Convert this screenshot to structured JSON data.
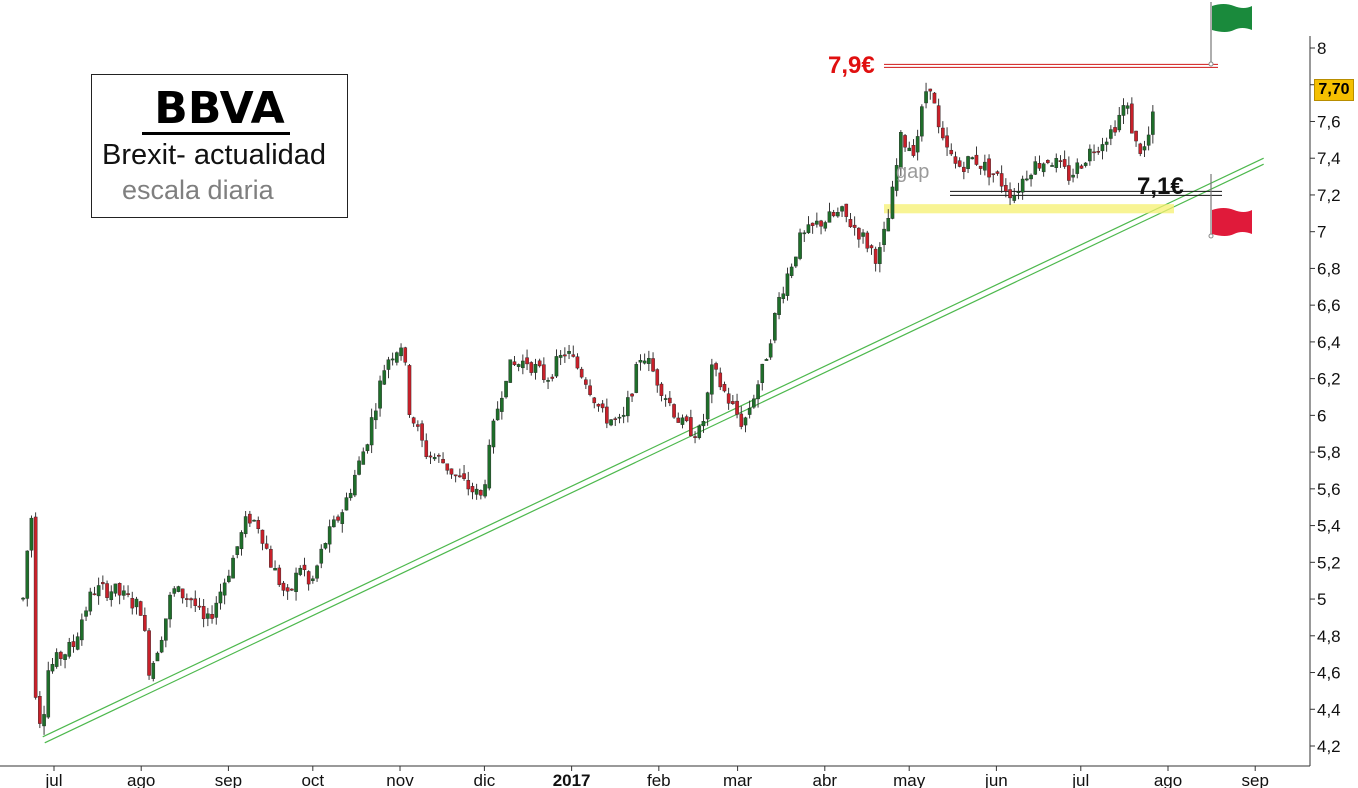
{
  "annotations": {
    "stock_title": "BBVA",
    "subtitle": "Brexit- actualidad",
    "scale_note": "escala diaria",
    "resistance_label": "7,9€",
    "support_label": "7,1€",
    "gap_label": "gap",
    "last_price": "7,70"
  },
  "colors": {
    "up_candle": "#1e6e2a",
    "down_candle": "#c8202a",
    "trendline": "#4db84d",
    "resistance": "#d01818",
    "support": "#111111",
    "gap_zone": "#f5f070",
    "price_badge": "#f5c000",
    "flag_green": "#1a8a3c",
    "flag_red": "#e01a3a"
  },
  "icons": {
    "top_flag": "green-flag-icon",
    "bottom_flag": "red-flag-icon"
  },
  "chart_data": {
    "type": "candlestick",
    "ylim": [
      4.15,
      8.05
    ],
    "y_ticks": [
      "4,2",
      "4,4",
      "4,6",
      "4,8",
      "5",
      "5,2",
      "5,4",
      "5,6",
      "5,8",
      "6",
      "6,2",
      "6,4",
      "6,6",
      "6,8",
      "7",
      "7,2",
      "7,4",
      "7,6",
      "7,8",
      "8"
    ],
    "x_ticks": [
      "jul",
      "ago",
      "sep",
      "oct",
      "nov",
      "dic",
      "2017",
      "feb",
      "mar",
      "abr",
      "may",
      "jun",
      "jul",
      "ago",
      "sep"
    ],
    "grid": false,
    "resistance_level": 7.9,
    "support_level": 7.1,
    "gap_range": [
      7.1,
      7.15
    ],
    "last_price": 7.7,
    "trendline": {
      "start": [
        "2016-06-27",
        4.25
      ],
      "end": [
        "2017-09-04",
        7.4
      ]
    },
    "price_path": [
      [
        "2016-06-20",
        5.0
      ],
      [
        "2016-06-22",
        5.35
      ],
      [
        "2016-06-23",
        5.45
      ],
      [
        "2016-06-24",
        4.55
      ],
      [
        "2016-06-27",
        4.25
      ],
      [
        "2016-06-28",
        4.6
      ],
      [
        "2016-07-04",
        4.7
      ],
      [
        "2016-07-08",
        4.75
      ],
      [
        "2016-07-11",
        4.9
      ],
      [
        "2016-07-15",
        5.05
      ],
      [
        "2016-07-22",
        5.05
      ],
      [
        "2016-08-01",
        4.95
      ],
      [
        "2016-08-04",
        4.6
      ],
      [
        "2016-08-09",
        4.85
      ],
      [
        "2016-08-12",
        5.05
      ],
      [
        "2016-08-19",
        5.0
      ],
      [
        "2016-08-24",
        4.85
      ],
      [
        "2016-09-01",
        5.15
      ],
      [
        "2016-09-08",
        5.45
      ],
      [
        "2016-09-12",
        5.4
      ],
      [
        "2016-09-16",
        5.2
      ],
      [
        "2016-09-22",
        5.0
      ],
      [
        "2016-09-27",
        5.2
      ],
      [
        "2016-09-30",
        5.05
      ],
      [
        "2016-10-05",
        5.3
      ],
      [
        "2016-10-12",
        5.5
      ],
      [
        "2016-10-20",
        5.85
      ],
      [
        "2016-10-27",
        6.3
      ],
      [
        "2016-11-02",
        6.4
      ],
      [
        "2016-11-04",
        6.05
      ],
      [
        "2016-11-10",
        5.8
      ],
      [
        "2016-11-16",
        5.75
      ],
      [
        "2016-11-22",
        5.65
      ],
      [
        "2016-11-30",
        5.55
      ],
      [
        "2016-12-05",
        6.0
      ],
      [
        "2016-12-09",
        6.25
      ],
      [
        "2016-12-16",
        6.3
      ],
      [
        "2016-12-23",
        6.2
      ],
      [
        "2016-12-30",
        6.35
      ],
      [
        "2017-01-06",
        6.2
      ],
      [
        "2017-01-12",
        6.0
      ],
      [
        "2017-01-19",
        5.95
      ],
      [
        "2017-01-26",
        6.35
      ],
      [
        "2017-02-02",
        6.15
      ],
      [
        "2017-02-09",
        5.95
      ],
      [
        "2017-02-16",
        5.9
      ],
      [
        "2017-02-20",
        6.25
      ],
      [
        "2017-02-27",
        6.05
      ],
      [
        "2017-03-03",
        5.95
      ],
      [
        "2017-03-10",
        6.25
      ],
      [
        "2017-03-16",
        6.65
      ],
      [
        "2017-03-23",
        6.95
      ],
      [
        "2017-03-30",
        7.05
      ],
      [
        "2017-04-07",
        7.1
      ],
      [
        "2017-04-13",
        7.0
      ],
      [
        "2017-04-20",
        6.85
      ],
      [
        "2017-04-24",
        7.1
      ],
      [
        "2017-04-28",
        7.5
      ],
      [
        "2017-05-03",
        7.45
      ],
      [
        "2017-05-08",
        7.85
      ],
      [
        "2017-05-12",
        7.5
      ],
      [
        "2017-05-18",
        7.35
      ],
      [
        "2017-05-24",
        7.4
      ],
      [
        "2017-06-01",
        7.3
      ],
      [
        "2017-06-07",
        7.2
      ],
      [
        "2017-06-13",
        7.35
      ],
      [
        "2017-06-20",
        7.4
      ],
      [
        "2017-06-27",
        7.3
      ],
      [
        "2017-07-05",
        7.45
      ],
      [
        "2017-07-12",
        7.55
      ],
      [
        "2017-07-17",
        7.7
      ],
      [
        "2017-07-21",
        7.45
      ],
      [
        "2017-07-24",
        7.45
      ],
      [
        "2017-07-28",
        7.7
      ]
    ]
  }
}
